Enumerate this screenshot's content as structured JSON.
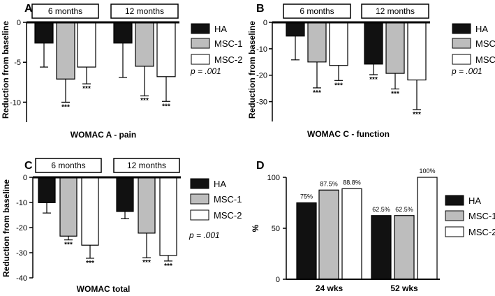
{
  "legend_labels": [
    "HA",
    "MSC-1",
    "MSC-2"
  ],
  "colors": {
    "HA": "#111111",
    "MSC-1": "#bdbdbd",
    "MSC-2": "#ffffff",
    "axis": "#000000"
  },
  "chart_data": [
    {
      "panel_letter": "A",
      "type": "bar",
      "title": "WOMAC A - pain",
      "ylabel": "Reduction from baseline",
      "ylim": [
        -12.5,
        0
      ],
      "yticks": [
        0,
        -5,
        -10
      ],
      "group_labels": [
        "6 months",
        "12 months"
      ],
      "series": [
        {
          "name": "HA",
          "values": [
            -2.6,
            -2.6
          ],
          "error_low": [
            -5.6,
            -6.9
          ],
          "significance": [
            "",
            ""
          ]
        },
        {
          "name": "MSC-1",
          "values": [
            -7.1,
            -5.5
          ],
          "error_low": [
            -10.0,
            -9.2
          ],
          "significance": [
            "***",
            "***"
          ]
        },
        {
          "name": "MSC-2",
          "values": [
            -5.6,
            -6.8
          ],
          "error_low": [
            -7.7,
            -9.9
          ],
          "significance": [
            "***",
            "***"
          ]
        }
      ],
      "annotation": "p = .001"
    },
    {
      "panel_letter": "B",
      "type": "bar",
      "title": "WOMAC C - function",
      "ylabel": "Reduction from baseline",
      "ylim": [
        -37.5,
        0
      ],
      "yticks": [
        0,
        -10,
        -20,
        -30
      ],
      "group_labels": [
        "6 months",
        "12 months"
      ],
      "series": [
        {
          "name": "HA",
          "values": [
            -5.2,
            -15.8
          ],
          "error_low": [
            -14.2,
            -19.8
          ],
          "significance": [
            "",
            "***"
          ]
        },
        {
          "name": "MSC-1",
          "values": [
            -15.0,
            -19.3
          ],
          "error_low": [
            -24.8,
            -25.2
          ],
          "significance": [
            "***",
            "***"
          ]
        },
        {
          "name": "MSC-2",
          "values": [
            -16.3,
            -21.8
          ],
          "error_low": [
            -22.0,
            -33.0
          ],
          "significance": [
            "***",
            "***"
          ]
        }
      ],
      "annotation": "p = .001"
    },
    {
      "panel_letter": "C",
      "type": "bar",
      "title": "WOMAC total",
      "ylabel": "Reduction from baseline",
      "ylim": [
        -40,
        0
      ],
      "yticks": [
        0,
        -10,
        -20,
        -30,
        -40
      ],
      "group_labels": [
        "6 months",
        "12 months"
      ],
      "series": [
        {
          "name": "HA",
          "values": [
            -10.1,
            -13.6
          ],
          "error_low": [
            -14.2,
            -16.5
          ],
          "significance": [
            "",
            ""
          ]
        },
        {
          "name": "MSC-1",
          "values": [
            -23.4,
            -22.2
          ],
          "error_low": [
            -24.9,
            -32.0
          ],
          "significance": [
            "***",
            "***"
          ]
        },
        {
          "name": "MSC-2",
          "values": [
            -27.0,
            -31.1
          ],
          "error_low": [
            -32.2,
            -33.3
          ],
          "significance": [
            "***",
            "***"
          ]
        }
      ],
      "annotation": "p = .001"
    },
    {
      "panel_letter": "D",
      "type": "bar",
      "title": "",
      "ylabel": "%",
      "ylim": [
        0,
        100
      ],
      "yticks": [
        0,
        50,
        100
      ],
      "categories": [
        "24 wks",
        "52 wks"
      ],
      "series": [
        {
          "name": "HA",
          "values": [
            75,
            62.5
          ],
          "labels": [
            "75%",
            "62.5%"
          ]
        },
        {
          "name": "MSC-1",
          "values": [
            87.5,
            62.5
          ],
          "labels": [
            "87.5%",
            "62.5%"
          ]
        },
        {
          "name": "MSC-2",
          "values": [
            88.8,
            100
          ],
          "labels": [
            "88.8%",
            "100%"
          ]
        }
      ]
    }
  ]
}
